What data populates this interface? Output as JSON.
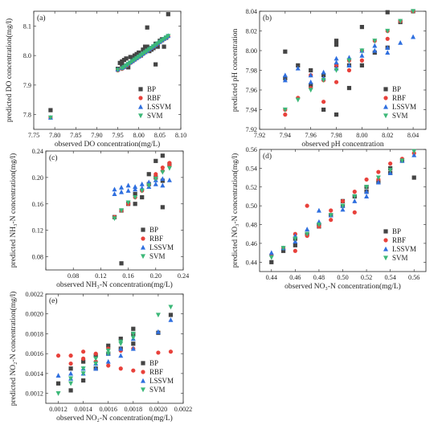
{
  "colors": {
    "BP": "#444444",
    "RBF": "#e8413b",
    "LSSVM": "#2f6fdf",
    "SVM": "#3cb878"
  },
  "marker_shapes": {
    "BP": "square",
    "RBF": "circle",
    "LSSVM": "triangle-up",
    "SVM": "triangle-down"
  },
  "legend_entries": [
    "BP",
    "RBF",
    "LSSVM",
    "SVM"
  ],
  "chart_data": [
    {
      "type": "scatter",
      "panel_label": "(a)",
      "xlabel": "observed DO concentration(mg/L)",
      "ylabel": "predicted DO concentration(mg/l)",
      "xlim": [
        7.75,
        8.1
      ],
      "ylim": [
        7.75,
        8.15
      ],
      "xticks": [
        7.75,
        7.8,
        7.85,
        7.9,
        7.95,
        8.0,
        8.05,
        8.1
      ],
      "xtick_labels": [
        "7.75",
        "7.80",
        "7.85",
        "7.90",
        "7.95",
        "8.00",
        "8.05",
        "8.10"
      ],
      "yticks": [
        7.8,
        7.9,
        8.0,
        8.1
      ],
      "ytick_labels": [
        "7.8",
        "7.9",
        "8.0",
        "8.1"
      ],
      "legend_position": "bottom-right",
      "series": [
        {
          "name": "BP",
          "x": [
            7.79,
            7.95,
            7.955,
            7.96,
            7.96,
            7.965,
            7.97,
            7.975,
            7.98,
            7.985,
            7.99,
            7.995,
            8.0,
            8.005,
            8.01,
            8.015,
            8.02,
            8.025,
            8.03,
            8.035,
            8.04,
            8.045,
            8.05,
            8.055,
            8.06,
            8.065,
            8.07,
            8.02,
            8.04
          ],
          "y": [
            7.815,
            7.955,
            7.975,
            7.98,
            7.97,
            7.985,
            7.99,
            7.96,
            7.995,
            7.99,
            8.0,
            8.005,
            8.01,
            8.0,
            8.02,
            8.03,
            8.095,
            8.015,
            8.02,
            8.025,
            8.04,
            8.03,
            8.05,
            8.055,
            8.03,
            8.06,
            8.14,
            8.03,
            7.97
          ]
        },
        {
          "name": "RBF",
          "x": [
            7.79,
            7.95,
            7.96,
            7.965,
            7.97,
            7.975,
            7.98,
            7.985,
            7.99,
            7.995,
            8.0,
            8.005,
            8.01,
            8.015,
            8.02,
            8.025,
            8.03,
            8.035,
            8.04,
            8.045,
            8.05,
            8.055,
            8.06,
            8.065,
            8.07
          ],
          "y": [
            7.79,
            7.95,
            7.955,
            7.96,
            7.965,
            7.97,
            7.975,
            7.98,
            7.985,
            7.99,
            7.995,
            8.0,
            8.005,
            8.01,
            8.015,
            8.02,
            8.025,
            8.03,
            8.035,
            8.04,
            8.045,
            8.05,
            8.055,
            8.06,
            8.065
          ]
        },
        {
          "name": "LSSVM",
          "x": [
            7.79,
            7.95,
            7.96,
            7.965,
            7.97,
            7.975,
            7.98,
            7.985,
            7.99,
            7.995,
            8.0,
            8.005,
            8.01,
            8.015,
            8.02,
            8.025,
            8.03,
            8.035,
            8.04,
            8.045,
            8.05,
            8.055,
            8.06,
            8.065,
            8.07
          ],
          "y": [
            7.79,
            7.953,
            7.958,
            7.962,
            7.968,
            7.973,
            7.977,
            7.982,
            7.987,
            7.992,
            7.997,
            8.002,
            8.007,
            8.012,
            8.017,
            8.022,
            8.027,
            8.032,
            8.037,
            8.042,
            8.047,
            8.052,
            8.057,
            8.062,
            8.067
          ]
        },
        {
          "name": "SVM",
          "x": [
            7.79,
            7.95,
            7.96,
            7.965,
            7.97,
            7.975,
            7.98,
            7.985,
            7.99,
            7.995,
            8.0,
            8.005,
            8.01,
            8.015,
            8.02,
            8.025,
            8.03,
            8.035,
            8.04,
            8.045,
            8.05,
            8.055,
            8.06,
            8.065,
            8.07
          ],
          "y": [
            7.79,
            7.951,
            7.956,
            7.961,
            7.966,
            7.971,
            7.976,
            7.981,
            7.986,
            7.991,
            7.996,
            8.001,
            8.006,
            8.011,
            8.016,
            8.021,
            8.026,
            8.031,
            8.036,
            8.041,
            8.046,
            8.051,
            8.056,
            8.061,
            8.066
          ]
        }
      ]
    },
    {
      "type": "scatter",
      "panel_label": "(b)",
      "xlabel": "observed pH concentration",
      "ylabel": "predicted pH concentration",
      "xlim": [
        7.92,
        8.05
      ],
      "ylim": [
        7.92,
        8.04
      ],
      "xticks": [
        7.92,
        7.94,
        7.96,
        7.98,
        8.0,
        8.02,
        8.04
      ],
      "xtick_labels": [
        "7.92",
        "7.94",
        "7.96",
        "7.98",
        "8.00",
        "8.02",
        "8.04"
      ],
      "yticks": [
        7.92,
        7.94,
        7.96,
        7.98,
        8.0,
        8.02,
        8.04
      ],
      "ytick_labels": [
        "7.92",
        "7.94",
        "7.96",
        "7.98",
        "8.00",
        "8.02",
        "8.04"
      ],
      "legend_position": "bottom-right",
      "series": [
        {
          "name": "BP",
          "x": [
            7.94,
            7.94,
            7.95,
            7.96,
            7.97,
            7.97,
            7.98,
            7.98,
            7.98,
            7.99,
            7.99,
            8.0,
            8.0,
            8.01,
            8.02,
            8.02,
            8.03,
            8.04,
            7.96,
            7.98
          ],
          "y": [
            7.999,
            7.972,
            7.985,
            7.965,
            7.975,
            7.94,
            8.01,
            7.985,
            7.935,
            7.985,
            7.962,
            8.024,
            7.985,
            7.998,
            8.039,
            8.003,
            8.029,
            8.04,
            7.98,
            8.006
          ]
        },
        {
          "name": "RBF",
          "x": [
            7.94,
            7.94,
            7.95,
            7.96,
            7.97,
            7.97,
            7.98,
            7.98,
            7.99,
            7.99,
            8.0,
            8.0,
            8.01,
            8.02,
            8.02,
            8.03,
            8.04,
            7.96
          ],
          "y": [
            7.94,
            7.935,
            7.952,
            7.962,
            7.97,
            7.948,
            7.985,
            7.968,
            7.99,
            7.98,
            8.0,
            7.99,
            8.01,
            8.02,
            8.012,
            8.03,
            8.04,
            7.975
          ]
        },
        {
          "name": "LSSVM",
          "x": [
            7.94,
            7.94,
            7.95,
            7.96,
            7.96,
            7.97,
            7.97,
            7.98,
            7.98,
            7.98,
            7.99,
            7.99,
            8.0,
            8.0,
            8.01,
            8.01,
            8.02,
            8.02,
            8.03,
            8.04
          ],
          "y": [
            7.97,
            7.975,
            7.982,
            7.975,
            7.968,
            7.978,
            7.972,
            7.988,
            7.982,
            7.992,
            7.985,
            7.993,
            8.0,
            7.995,
            8.005,
            8.0,
            7.998,
            8.003,
            8.008,
            8.014
          ]
        },
        {
          "name": "SVM",
          "x": [
            7.94,
            7.95,
            7.96,
            7.97,
            7.98,
            7.99,
            8.0,
            8.01,
            8.02,
            8.03,
            8.04
          ],
          "y": [
            7.94,
            7.95,
            7.96,
            7.97,
            7.98,
            7.99,
            8.0,
            8.01,
            8.02,
            8.03,
            8.04
          ]
        }
      ]
    },
    {
      "type": "scatter",
      "panel_label": "(c)",
      "xlabel": "observed NH₃-N concentration(mg/L)",
      "ylabel": "predicted NH₃-N concentration(mg/l)",
      "xlim": [
        0.04,
        0.24
      ],
      "ylim": [
        0.06,
        0.24
      ],
      "xticks": [
        0.04,
        0.08,
        0.12,
        0.16,
        0.2,
        0.24
      ],
      "xtick_labels": [
        "",
        "0.08",
        "0.12",
        "0.16",
        "0.20",
        "0.24"
      ],
      "yticks": [
        0.08,
        0.12,
        0.16,
        0.2,
        0.24
      ],
      "ytick_labels": [
        "0.08",
        "0.12",
        "0.16",
        "0.20",
        "0.24"
      ],
      "legend_position": "bottom-right",
      "series": [
        {
          "name": "BP",
          "x": [
            0.14,
            0.15,
            0.16,
            0.17,
            0.18,
            0.19,
            0.19,
            0.2,
            0.2,
            0.21,
            0.21,
            0.21,
            0.22,
            0.17,
            0.15
          ],
          "y": [
            0.14,
            0.07,
            0.16,
            0.175,
            0.17,
            0.205,
            0.19,
            0.2,
            0.225,
            0.233,
            0.155,
            0.195,
            0.22,
            0.16,
            0.15
          ]
        },
        {
          "name": "RBF",
          "x": [
            0.14,
            0.15,
            0.16,
            0.17,
            0.18,
            0.19,
            0.2,
            0.2,
            0.21,
            0.21,
            0.22,
            0.22
          ],
          "y": [
            0.14,
            0.15,
            0.16,
            0.17,
            0.18,
            0.19,
            0.2,
            0.205,
            0.21,
            0.215,
            0.218,
            0.222
          ]
        },
        {
          "name": "LSSVM",
          "x": [
            0.14,
            0.14,
            0.15,
            0.15,
            0.16,
            0.16,
            0.17,
            0.17,
            0.18,
            0.18,
            0.19,
            0.19,
            0.2,
            0.2,
            0.21,
            0.21,
            0.22
          ],
          "y": [
            0.182,
            0.175,
            0.185,
            0.178,
            0.188,
            0.18,
            0.186,
            0.182,
            0.19,
            0.184,
            0.193,
            0.186,
            0.196,
            0.19,
            0.198,
            0.188,
            0.196
          ]
        },
        {
          "name": "SVM",
          "x": [
            0.14,
            0.15,
            0.16,
            0.17,
            0.18,
            0.19,
            0.2,
            0.21,
            0.22
          ],
          "y": [
            0.138,
            0.15,
            0.162,
            0.17,
            0.18,
            0.188,
            0.198,
            0.208,
            0.214
          ]
        }
      ]
    },
    {
      "type": "scatter",
      "panel_label": "(d)",
      "xlabel": "observed NO₃-N concentration(mg/L)",
      "ylabel": "predicted NO₃-N concentration(mg/l)",
      "xlim": [
        0.43,
        0.57
      ],
      "ylim": [
        0.43,
        0.56
      ],
      "xticks": [
        0.44,
        0.46,
        0.48,
        0.5,
        0.52,
        0.54,
        0.56
      ],
      "xtick_labels": [
        "0.44",
        "0.46",
        "0.48",
        "0.50",
        "0.52",
        "0.54",
        "0.56"
      ],
      "yticks": [
        0.44,
        0.46,
        0.48,
        0.5,
        0.52,
        0.54,
        0.56
      ],
      "ytick_labels": [
        "0.44",
        "0.46",
        "0.48",
        "0.50",
        "0.52",
        "0.54",
        "0.56"
      ],
      "legend_position": "bottom-right",
      "series": [
        {
          "name": "BP",
          "x": [
            0.44,
            0.45,
            0.46,
            0.47,
            0.48,
            0.49,
            0.5,
            0.51,
            0.52,
            0.53,
            0.54,
            0.55,
            0.56,
            0.46,
            0.48,
            0.5,
            0.52,
            0.54
          ],
          "y": [
            0.44,
            0.452,
            0.465,
            0.47,
            0.48,
            0.49,
            0.5,
            0.51,
            0.52,
            0.525,
            0.54,
            0.548,
            0.53,
            0.458,
            0.478,
            0.505,
            0.515,
            0.535
          ]
        },
        {
          "name": "RBF",
          "x": [
            0.44,
            0.45,
            0.46,
            0.47,
            0.48,
            0.49,
            0.5,
            0.51,
            0.52,
            0.53,
            0.54,
            0.55,
            0.56,
            0.46,
            0.47,
            0.49,
            0.51,
            0.53
          ],
          "y": [
            0.448,
            0.455,
            0.47,
            0.5,
            0.478,
            0.495,
            0.505,
            0.515,
            0.528,
            0.536,
            0.545,
            0.55,
            0.556,
            0.452,
            0.468,
            0.485,
            0.493,
            0.528
          ]
        },
        {
          "name": "LSSVM",
          "x": [
            0.44,
            0.45,
            0.46,
            0.47,
            0.48,
            0.49,
            0.5,
            0.51,
            0.52,
            0.53,
            0.54,
            0.55,
            0.56,
            0.46,
            0.48,
            0.5,
            0.52
          ],
          "y": [
            0.45,
            0.455,
            0.462,
            0.475,
            0.495,
            0.49,
            0.5,
            0.505,
            0.515,
            0.525,
            0.535,
            0.548,
            0.554,
            0.468,
            0.483,
            0.496,
            0.51
          ]
        },
        {
          "name": "SVM",
          "x": [
            0.44,
            0.45,
            0.46,
            0.47,
            0.48,
            0.49,
            0.5,
            0.51,
            0.52,
            0.53,
            0.54,
            0.55,
            0.56
          ],
          "y": [
            0.445,
            0.455,
            0.465,
            0.47,
            0.48,
            0.49,
            0.5,
            0.51,
            0.52,
            0.53,
            0.538,
            0.548,
            0.558
          ]
        }
      ]
    },
    {
      "type": "scatter",
      "panel_label": "(e)",
      "xlabel": "observed NO₂-N concentration(mg/L)",
      "ylabel": "predicted NO₂-N concentration(mg/l)",
      "xlim": [
        0.0011,
        0.0022
      ],
      "ylim": [
        0.0011,
        0.0022
      ],
      "xticks": [
        0.0012,
        0.0014,
        0.0016,
        0.0018,
        0.002,
        0.0022
      ],
      "xtick_labels": [
        "0.0012",
        "0.0014",
        "0.0016",
        "0.0018",
        "0.0020",
        "0.0022"
      ],
      "yticks": [
        0.0012,
        0.0014,
        0.0016,
        0.0018,
        0.002,
        0.0022
      ],
      "ytick_labels": [
        "0.0012",
        "0.0014",
        "0.0016",
        "0.0018",
        "0.0020",
        "0.0022"
      ],
      "legend_position": "bottom-right",
      "series": [
        {
          "name": "BP",
          "x": [
            0.0012,
            0.0013,
            0.0013,
            0.0014,
            0.0014,
            0.0015,
            0.0015,
            0.0016,
            0.0016,
            0.0017,
            0.0017,
            0.0018,
            0.0018,
            0.0018,
            0.002,
            0.0021
          ],
          "y": [
            0.0013,
            0.00123,
            0.00145,
            0.00133,
            0.00152,
            0.00145,
            0.00158,
            0.0016,
            0.00168,
            0.00175,
            0.00165,
            0.0018,
            0.00185,
            0.0017,
            0.00181,
            0.00199
          ]
        },
        {
          "name": "RBF",
          "x": [
            0.0012,
            0.0013,
            0.0013,
            0.0014,
            0.0014,
            0.0015,
            0.0015,
            0.0016,
            0.0016,
            0.0017,
            0.0017,
            0.0018,
            0.0018,
            0.002,
            0.0021
          ],
          "y": [
            0.00158,
            0.00158,
            0.0015,
            0.00162,
            0.00155,
            0.0016,
            0.00152,
            0.00165,
            0.00148,
            0.00163,
            0.00145,
            0.00165,
            0.00143,
            0.00161,
            0.00162
          ]
        },
        {
          "name": "LSSVM",
          "x": [
            0.0012,
            0.0013,
            0.0013,
            0.0014,
            0.0014,
            0.0015,
            0.0015,
            0.0016,
            0.0016,
            0.0017,
            0.0017,
            0.0018,
            0.0018,
            0.002,
            0.0021
          ],
          "y": [
            0.00138,
            0.0014,
            0.00135,
            0.00145,
            0.0014,
            0.0015,
            0.00145,
            0.0016,
            0.00152,
            0.00165,
            0.00158,
            0.00175,
            0.00165,
            0.00182,
            0.00194
          ]
        },
        {
          "name": "SVM",
          "x": [
            0.0012,
            0.0013,
            0.0013,
            0.0014,
            0.0014,
            0.0015,
            0.0015,
            0.0016,
            0.0016,
            0.0017,
            0.0017,
            0.0018,
            0.0018,
            0.002,
            0.0021
          ],
          "y": [
            0.0012,
            0.0013,
            0.00135,
            0.0014,
            0.00145,
            0.0015,
            0.00155,
            0.0016,
            0.00163,
            0.0017,
            0.00172,
            0.0018,
            0.00176,
            0.00199,
            0.00207
          ]
        }
      ]
    }
  ]
}
